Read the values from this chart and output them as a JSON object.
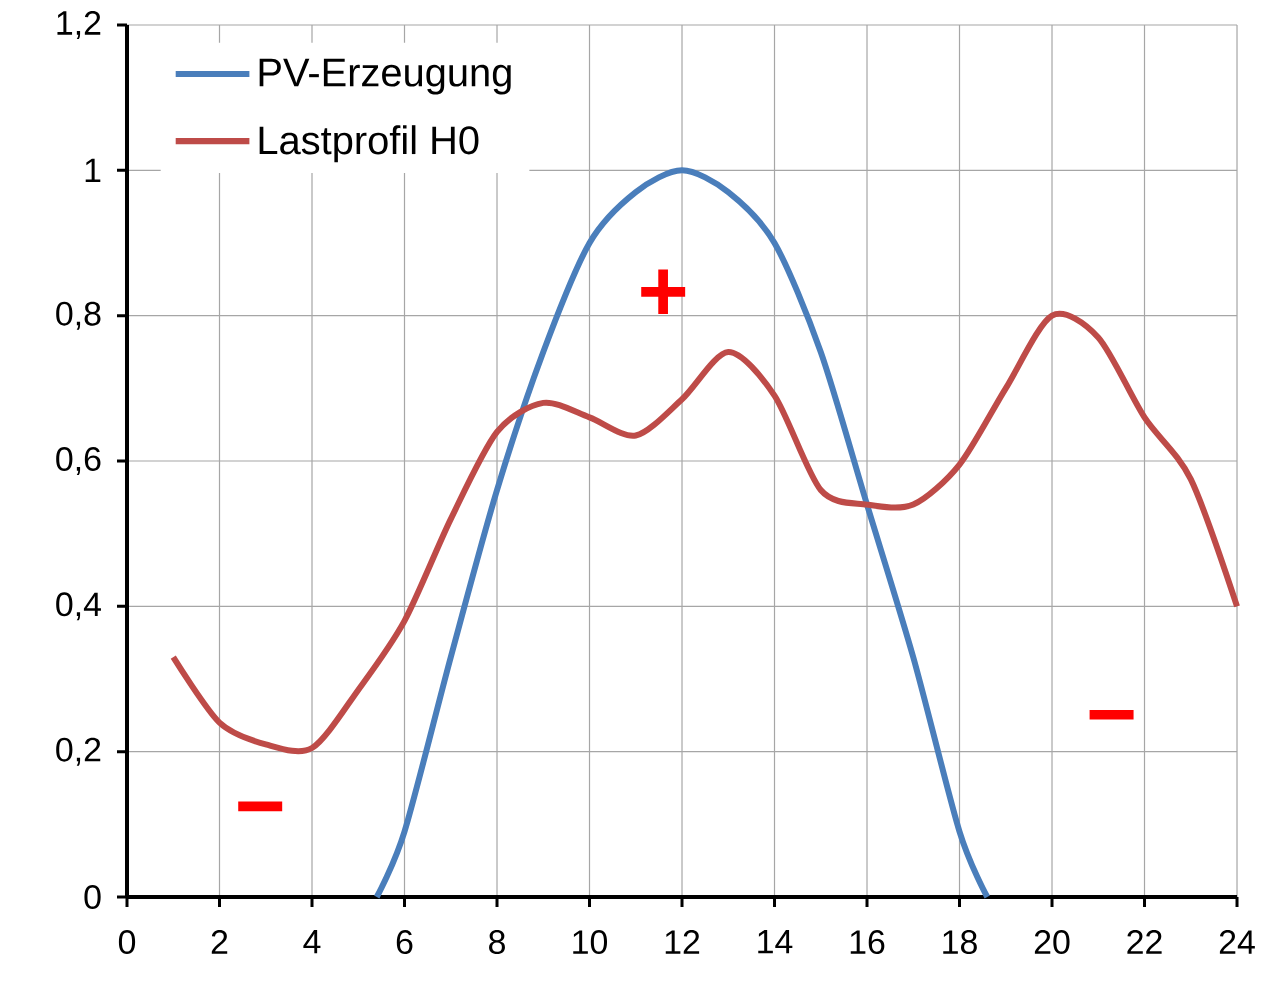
{
  "chart_data": {
    "type": "line",
    "xlim": [
      0,
      24
    ],
    "xticks": [
      0,
      2,
      4,
      6,
      8,
      10,
      12,
      14,
      16,
      18,
      20,
      22,
      24
    ],
    "ylim": [
      0,
      1.2
    ],
    "yticks": [
      0,
      {
        "value": 0.2,
        "label": "0,2"
      },
      {
        "value": 0.4,
        "label": "0,4"
      },
      {
        "value": 0.6,
        "label": "0,6"
      },
      {
        "value": 0.8,
        "label": "0,8"
      },
      1,
      {
        "value": 1.2,
        "label": "1,2"
      }
    ],
    "grid": true,
    "legend": "top left",
    "line_style": "solid",
    "marker": "none",
    "series": [
      {
        "name": "PV-Erzeugung",
        "color": "#4a7ebb",
        "x": [
          5.4,
          6,
          7,
          8,
          9,
          10,
          11,
          12,
          13,
          14,
          15,
          16,
          17,
          18,
          18.6
        ],
        "values": [
          0,
          0.09,
          0.33,
          0.56,
          0.75,
          0.9,
          0.97,
          1.0,
          0.97,
          0.9,
          0.75,
          0.54,
          0.33,
          0.09,
          0
        ]
      },
      {
        "name": "Lastprofil H0",
        "color": "#be4b48",
        "x": [
          1,
          2,
          3,
          4,
          5,
          6,
          7,
          8,
          9,
          10,
          11,
          12,
          13,
          14,
          15,
          16,
          17,
          18,
          19,
          20,
          21,
          22,
          23,
          24
        ],
        "values": [
          0.33,
          0.24,
          0.21,
          0.205,
          0.285,
          0.38,
          0.52,
          0.64,
          0.68,
          0.66,
          0.635,
          0.685,
          0.75,
          0.69,
          0.56,
          0.54,
          0.54,
          0.595,
          0.7,
          0.8,
          0.77,
          0.66,
          0.575,
          0.4
        ]
      }
    ],
    "annotations": [
      "+",
      "−",
      "−"
    ]
  }
}
